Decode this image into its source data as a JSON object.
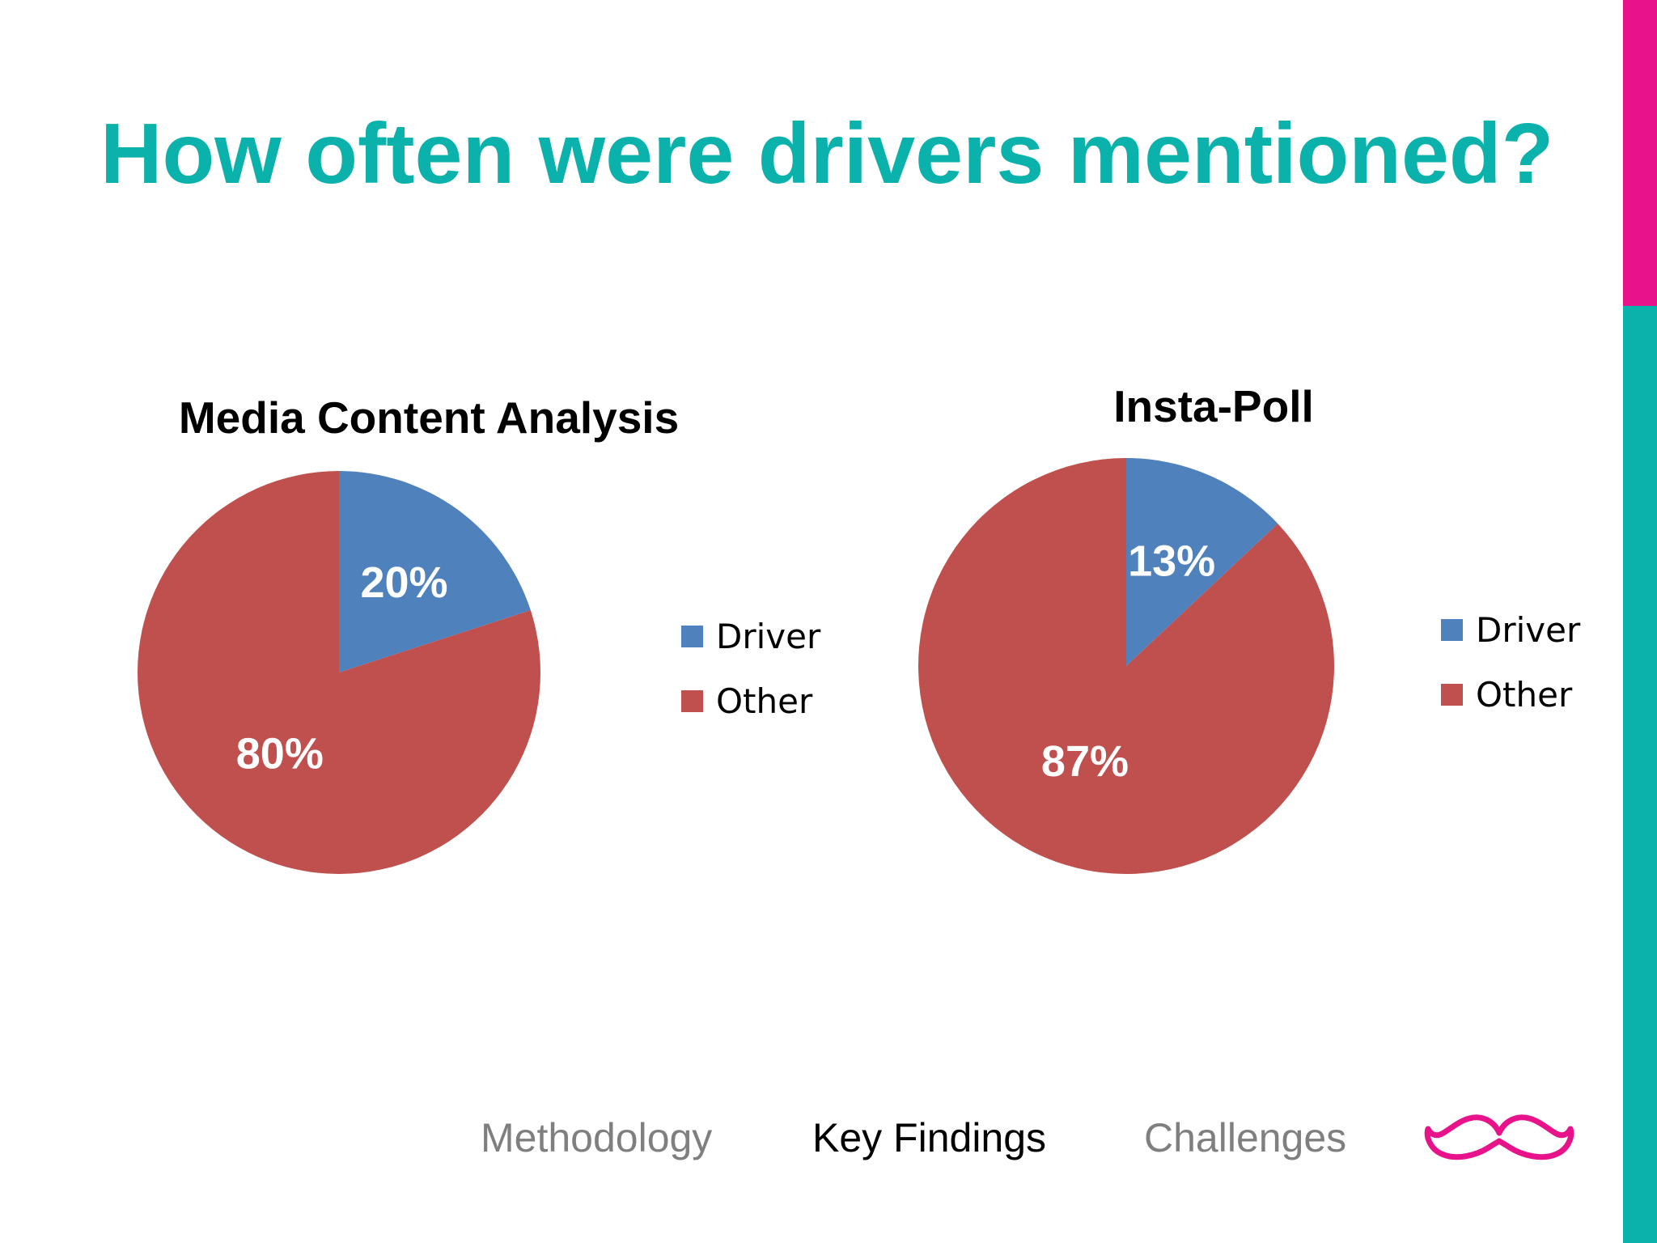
{
  "slide": {
    "title": "How often were drivers mentioned?",
    "title_color": "#0bb2ab",
    "accent_top_color": "#e8128a",
    "accent_bottom_color": "#0bb2ab"
  },
  "chart_data": [
    {
      "type": "pie",
      "title": "Media Content Analysis",
      "categories": [
        "Driver",
        "Other"
      ],
      "values": [
        20,
        80
      ],
      "value_labels": [
        "20%",
        "80%"
      ],
      "colors": [
        "#4f81bd",
        "#c0504d"
      ],
      "legend_position": "right",
      "legend": [
        "Driver",
        "Other"
      ]
    },
    {
      "type": "pie",
      "title": "Insta-Poll",
      "categories": [
        "Driver",
        "Other"
      ],
      "values": [
        13,
        87
      ],
      "value_labels": [
        "13%",
        "87%"
      ],
      "colors": [
        "#4f81bd",
        "#c0504d"
      ],
      "legend_position": "right",
      "legend": [
        "Driver",
        "Other"
      ]
    }
  ],
  "footer": {
    "nav": [
      "Methodology",
      "Key Findings",
      "Challenges"
    ],
    "active": "Key Findings",
    "logo_icon": "mustache-icon",
    "logo_color": "#e8128a"
  }
}
